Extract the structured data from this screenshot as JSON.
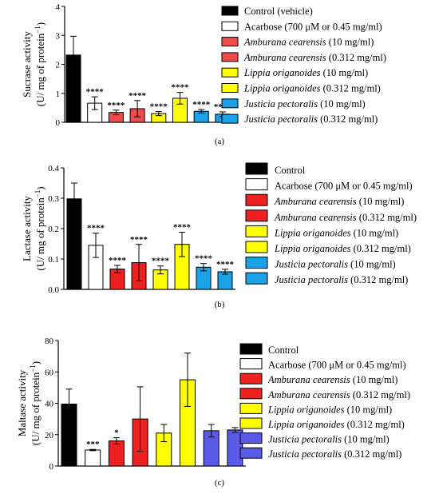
{
  "colors": {
    "black": "#000000",
    "white": "#ffffff",
    "red": "#ef2020",
    "red_light": "#ef4b4b",
    "yellow": "#ffff00",
    "blue": "#1ba1e6",
    "purple": "#5a5ae8"
  },
  "chart_data": [
    {
      "type": "bar",
      "panel_label": "(a)",
      "ylabel_line1": "Sucrase activity",
      "ylabel_line2": "(U/ mg of protein",
      "ylabel_sup": "−1",
      "ylabel_close": ")",
      "ylim": [
        0,
        4
      ],
      "yticks": [
        "0",
        "1",
        "2",
        "3",
        "4"
      ],
      "ytick_values": [
        0,
        1,
        2,
        3,
        4
      ],
      "values": [
        2.32,
        0.66,
        0.34,
        0.47,
        0.3,
        0.83,
        0.38,
        0.28
      ],
      "errors": [
        0.65,
        0.22,
        0.08,
        0.28,
        0.07,
        0.2,
        0.06,
        0.08
      ],
      "annotations": [
        "",
        "****",
        "****",
        "****",
        "****",
        "****",
        "****",
        "****"
      ],
      "bar_colors": [
        "#000000",
        "#ffffff",
        "#ef4b4b",
        "#ef4b4b",
        "#ffff00",
        "#ffff00",
        "#1ba1e6",
        "#1ba1e6"
      ],
      "legend": [
        {
          "label": "Control (vehicle)",
          "italic": ""
        },
        {
          "label": "Acarbose (700 μM or 0.45 mg/ml)",
          "italic": ""
        },
        {
          "label": " (10 mg/ml)",
          "italic": "Amburana cearensis"
        },
        {
          "label": " (0.312 mg/ml)",
          "italic": "Amburana cearensis"
        },
        {
          "label": " (10 mg/ml)",
          "italic": "Lippia origanoides"
        },
        {
          "label": " (0.312 mg/ml)",
          "italic": "Lippia origanoides"
        },
        {
          "label": " (10 mg/ml)",
          "italic": "Justicia pectoralis"
        },
        {
          "label": " (0.312 mg/ml)",
          "italic": "Justicia pectoralis"
        }
      ]
    },
    {
      "type": "bar",
      "panel_label": "(b)",
      "ylabel_line1": "Lactase activity",
      "ylabel_line2": "(U/ mg of protein",
      "ylabel_sup": "−1",
      "ylabel_close": ")",
      "ylim": [
        0,
        0.4
      ],
      "yticks": [
        "0.0",
        "0.1",
        "0.2",
        "0.3",
        "0.4"
      ],
      "ytick_values": [
        0,
        0.1,
        0.2,
        0.3,
        0.4
      ],
      "values": [
        0.298,
        0.145,
        0.067,
        0.088,
        0.064,
        0.148,
        0.073,
        0.058
      ],
      "errors": [
        0.052,
        0.04,
        0.012,
        0.06,
        0.013,
        0.04,
        0.012,
        0.008
      ],
      "annotations": [
        "",
        "****",
        "****",
        "****",
        "****",
        "****",
        "****",
        "****"
      ],
      "bar_colors": [
        "#000000",
        "#ffffff",
        "#ef2020",
        "#ef2020",
        "#ffff00",
        "#ffff00",
        "#1ba1e6",
        "#1ba1e6"
      ],
      "legend": [
        {
          "label": "Control",
          "italic": ""
        },
        {
          "label": "Acarbose (700 μM or 0.45 mg/ml)",
          "italic": ""
        },
        {
          "label": " (10 mg/ml)",
          "italic": "Amburana cearensis"
        },
        {
          "label": " (0.312 mg/ml)",
          "italic": "Amburana cearensis"
        },
        {
          "label": " (10 mg/ml)",
          "italic": "Lippia origanoides"
        },
        {
          "label": " (0.312 mg/ml)",
          "italic": "Lippia origanoides"
        },
        {
          "label": " (10 mg/ml)",
          "italic": "Justicia pectoralis"
        },
        {
          "label": " (0.312 mg/ml)",
          "italic": "Justicia pectoralis"
        }
      ]
    },
    {
      "type": "bar",
      "panel_label": "(c)",
      "ylabel_line1": "Maltase activity",
      "ylabel_line2": "(U/ mg of protein",
      "ylabel_sup": "−1",
      "ylabel_close": ")",
      "ylim": [
        0,
        80
      ],
      "yticks": [
        "0",
        "20",
        "40",
        "60",
        "80"
      ],
      "ytick_values": [
        0,
        20,
        40,
        60,
        80
      ],
      "values": [
        39.5,
        10.2,
        16.0,
        30.0,
        21.0,
        55.0,
        22.5,
        23.0
      ],
      "errors": [
        9.5,
        0.4,
        2.0,
        20.5,
        5.5,
        17.0,
        4.0,
        1.5
      ],
      "annotations": [
        "",
        "***",
        "*",
        "",
        "",
        "",
        "",
        ""
      ],
      "bar_colors": [
        "#000000",
        "#ffffff",
        "#ef2020",
        "#ef2020",
        "#ffff00",
        "#ffff00",
        "#5a5ae8",
        "#5a5ae8"
      ],
      "legend": [
        {
          "label": "Control",
          "italic": ""
        },
        {
          "label": "Acarbose (700 μM or 0.45 mg/ml)",
          "italic": ""
        },
        {
          "label": " (10 mg/ml)",
          "italic": "Amburana cearensis"
        },
        {
          "label": " (0.312 mg/ml)",
          "italic": "Amburana cearensis"
        },
        {
          "label": " (10 mg/ml)",
          "italic": "Lippia origanoides"
        },
        {
          "label": " (0.312 mg/ml)",
          "italic": "Lippia origanoides"
        },
        {
          "label": " (10 mg/ml)",
          "italic": "Justicia pectoralis"
        },
        {
          "label": " (0.312 mg/ml)",
          "italic": "Justicia pectoralis"
        }
      ]
    }
  ]
}
